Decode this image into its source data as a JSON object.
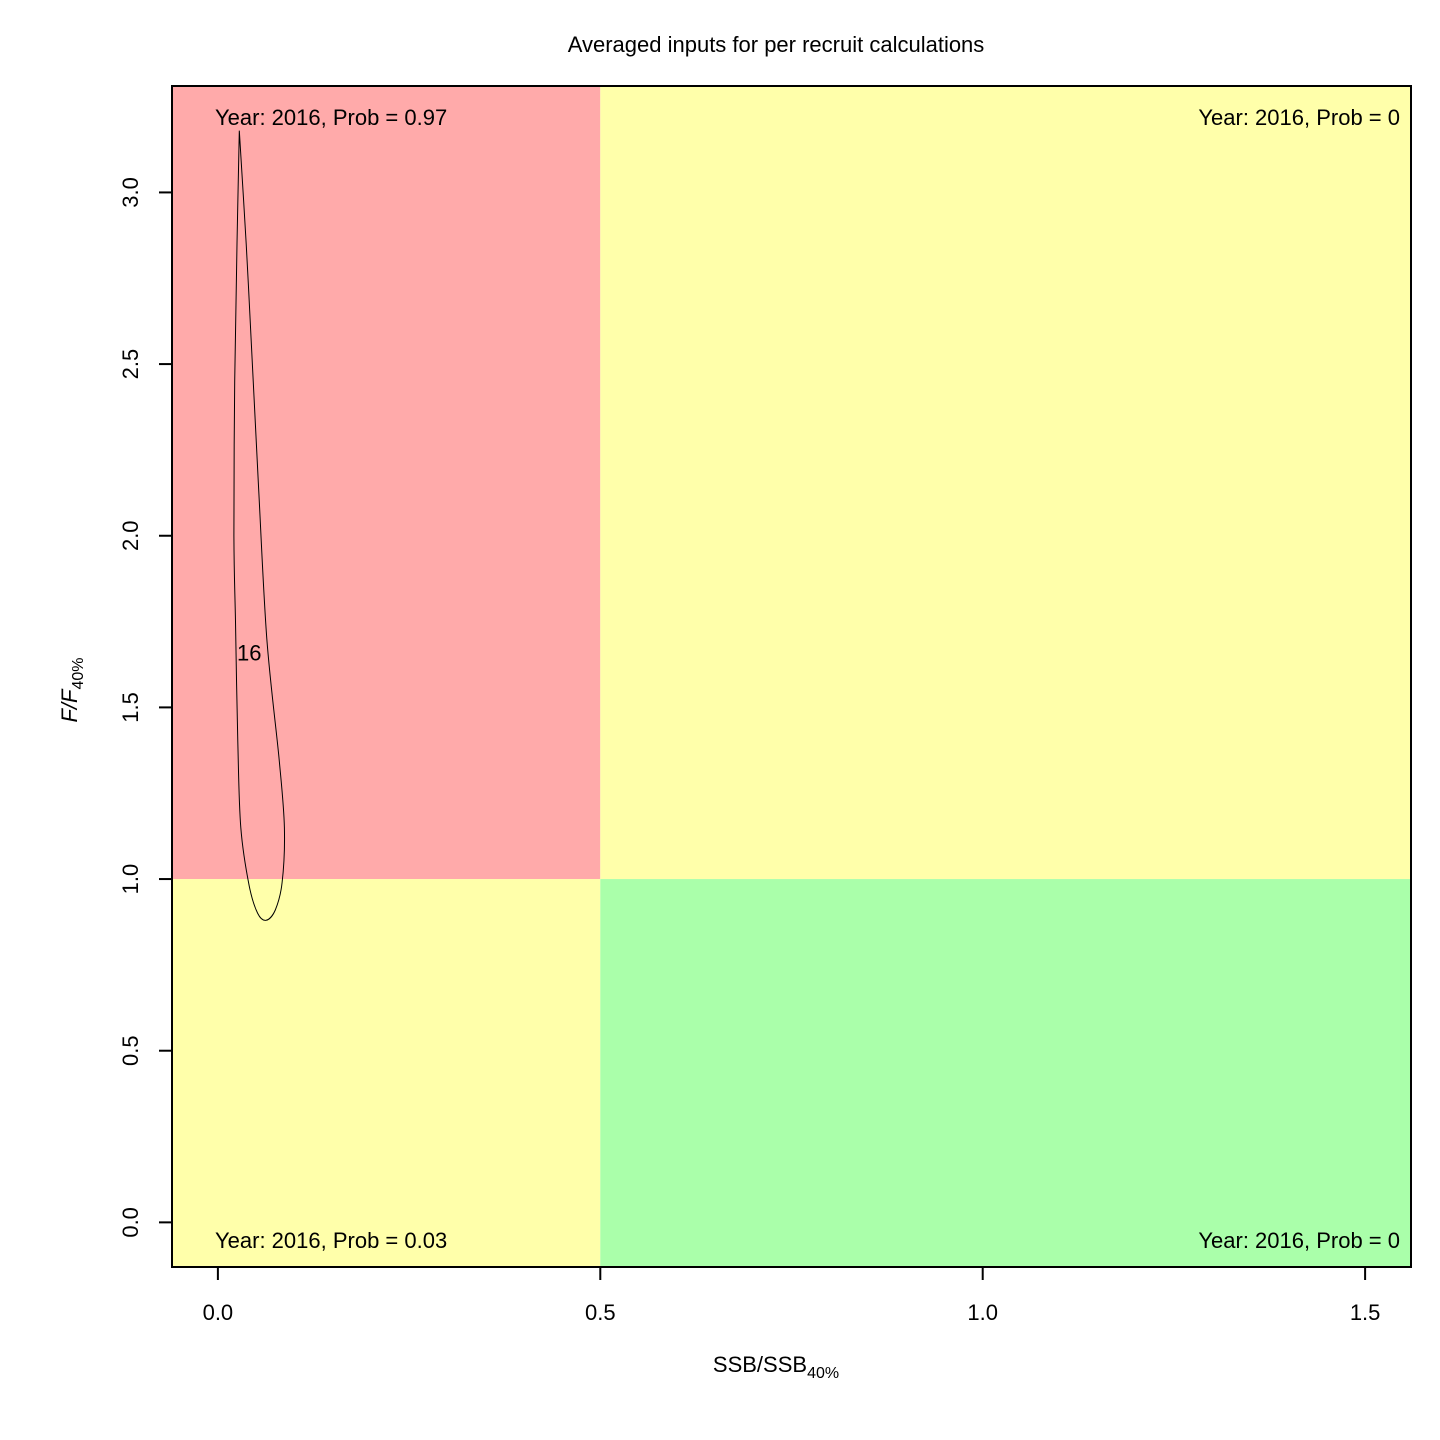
{
  "chart_data": {
    "type": "scatter",
    "title": "Averaged inputs for per recruit calculations",
    "xlabel": {
      "main": "SSB/SSB",
      "sub": "40%"
    },
    "ylabel": {
      "main": "F/F",
      "sub": "40%"
    },
    "xlim": [
      -0.06,
      1.56
    ],
    "ylim": [
      -0.13,
      3.31
    ],
    "xticks": [
      0.0,
      0.5,
      1.0,
      1.5
    ],
    "xtick_labels": [
      "0.0",
      "0.5",
      "1.0",
      "1.5"
    ],
    "yticks": [
      0.0,
      0.5,
      1.0,
      1.5,
      2.0,
      2.5,
      3.0
    ],
    "ytick_labels": [
      "0.0",
      "0.5",
      "1.0",
      "1.5",
      "2.0",
      "2.5",
      "3.0"
    ],
    "grid": false,
    "reference_x": 0.5,
    "reference_y": 1.0,
    "quadrants": [
      {
        "name": "overfished-overfishing",
        "x": [
          -0.06,
          0.5
        ],
        "y": [
          1.0,
          3.31
        ],
        "color": "#ffaaaa"
      },
      {
        "name": "healthy-overfishing",
        "x": [
          0.5,
          1.56
        ],
        "y": [
          1.0,
          3.31
        ],
        "color": "#ffffaa"
      },
      {
        "name": "overfished-healthy",
        "x": [
          -0.06,
          0.5
        ],
        "y": [
          -0.13,
          1.0
        ],
        "color": "#ffffaa"
      },
      {
        "name": "healthy",
        "x": [
          0.5,
          1.56
        ],
        "y": [
          -0.13,
          1.0
        ],
        "color": "#aaffaa"
      }
    ],
    "quadrant_labels": {
      "top_left": "Year: 2016, Prob = 0.97",
      "top_right": "Year: 2016, Prob = 0",
      "bottom_left": "Year: 2016, Prob = 0.03",
      "bottom_right": "Year: 2016, Prob = 0"
    },
    "contour": {
      "label": "16",
      "label_at": [
        0.041,
        1.66
      ],
      "points": [
        [
          0.028,
          3.18
        ],
        [
          0.037,
          2.85
        ],
        [
          0.044,
          2.55
        ],
        [
          0.053,
          2.15
        ],
        [
          0.064,
          1.7
        ],
        [
          0.08,
          1.35
        ],
        [
          0.087,
          1.15
        ],
        [
          0.084,
          0.99
        ],
        [
          0.075,
          0.91
        ],
        [
          0.063,
          0.88
        ],
        [
          0.052,
          0.9
        ],
        [
          0.041,
          0.98
        ],
        [
          0.03,
          1.15
        ],
        [
          0.026,
          1.4
        ],
        [
          0.023,
          1.75
        ],
        [
          0.021,
          2.0
        ],
        [
          0.022,
          2.45
        ],
        [
          0.025,
          2.85
        ],
        [
          0.028,
          3.18
        ]
      ]
    }
  }
}
